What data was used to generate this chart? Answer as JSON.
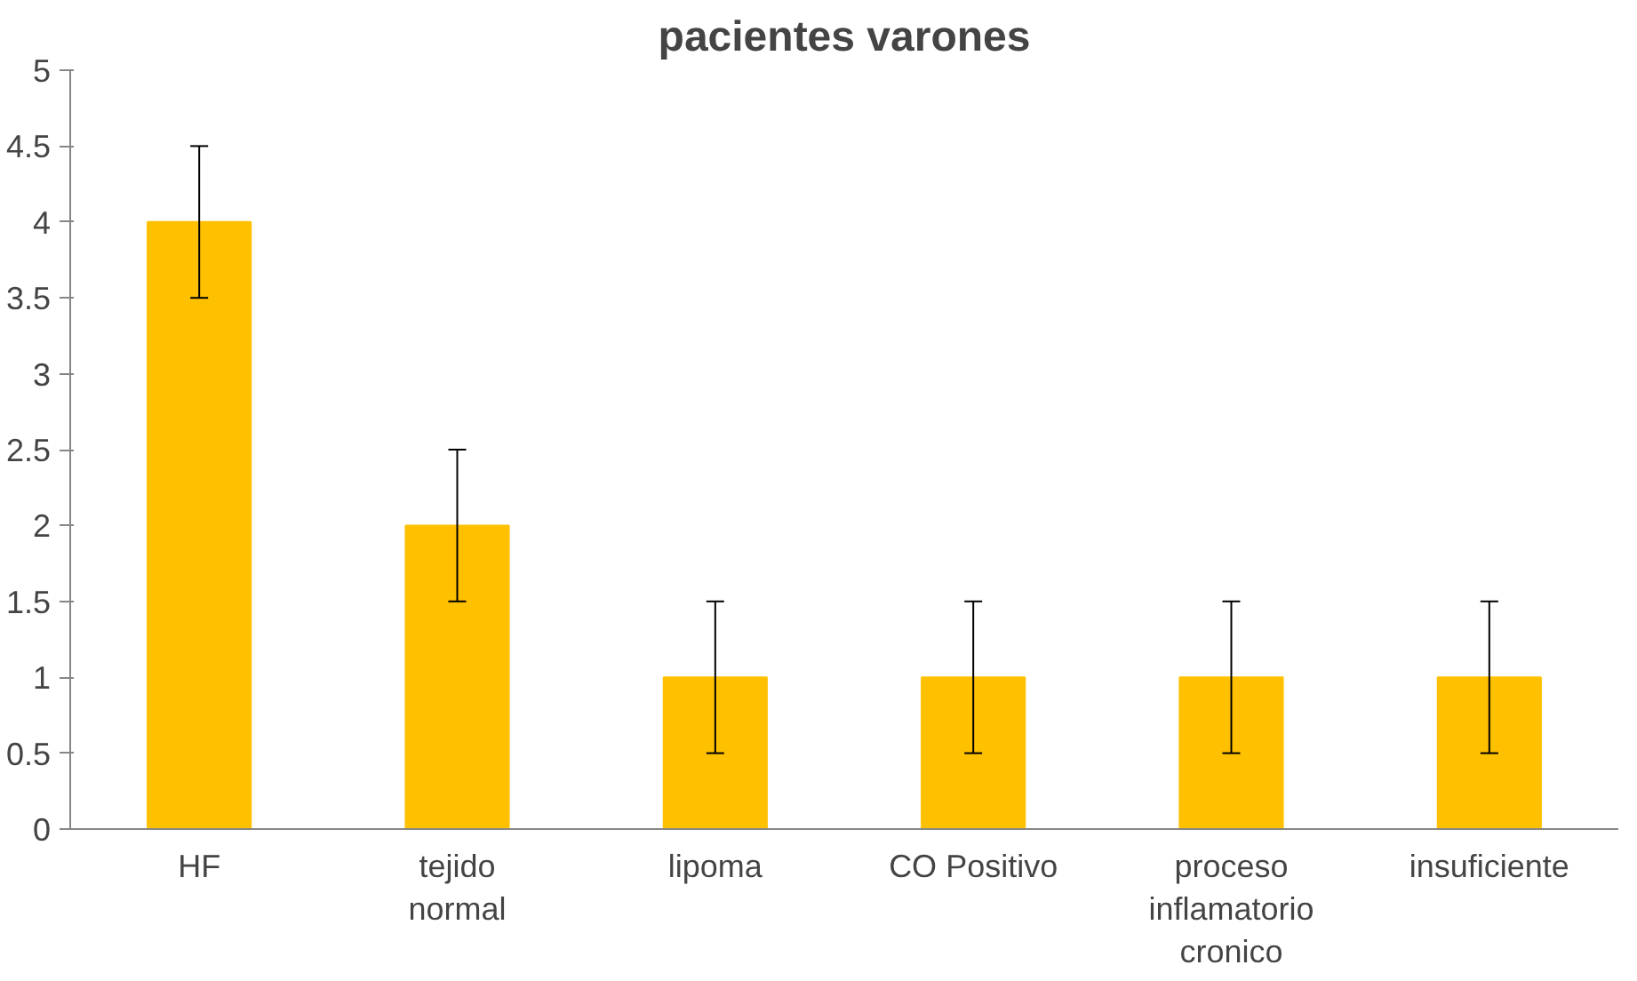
{
  "chart_data": {
    "type": "bar",
    "title": "pacientes varones",
    "categories": [
      "HF",
      "tejido normal",
      "lipoma",
      "CO Positivo",
      "proceso inflamatorio cronico",
      "insuficiente"
    ],
    "values": [
      4,
      2,
      1,
      1,
      1,
      1
    ],
    "errors": [
      0.5,
      0.5,
      0.5,
      0.5,
      0.5,
      0.5
    ],
    "color": "#ffc000",
    "ylim": [
      0,
      5
    ],
    "yticks": [
      0,
      {
        "value": 0.5,
        "label": "0.5"
      },
      1,
      {
        "value": 1.5,
        "label": "1.5"
      },
      2,
      {
        "value": 2.5,
        "label": "2.5"
      },
      3,
      {
        "value": 3.5,
        "label": "3.5"
      },
      4,
      {
        "value": 4.5,
        "label": "4.5"
      },
      5
    ],
    "grid": false
  }
}
